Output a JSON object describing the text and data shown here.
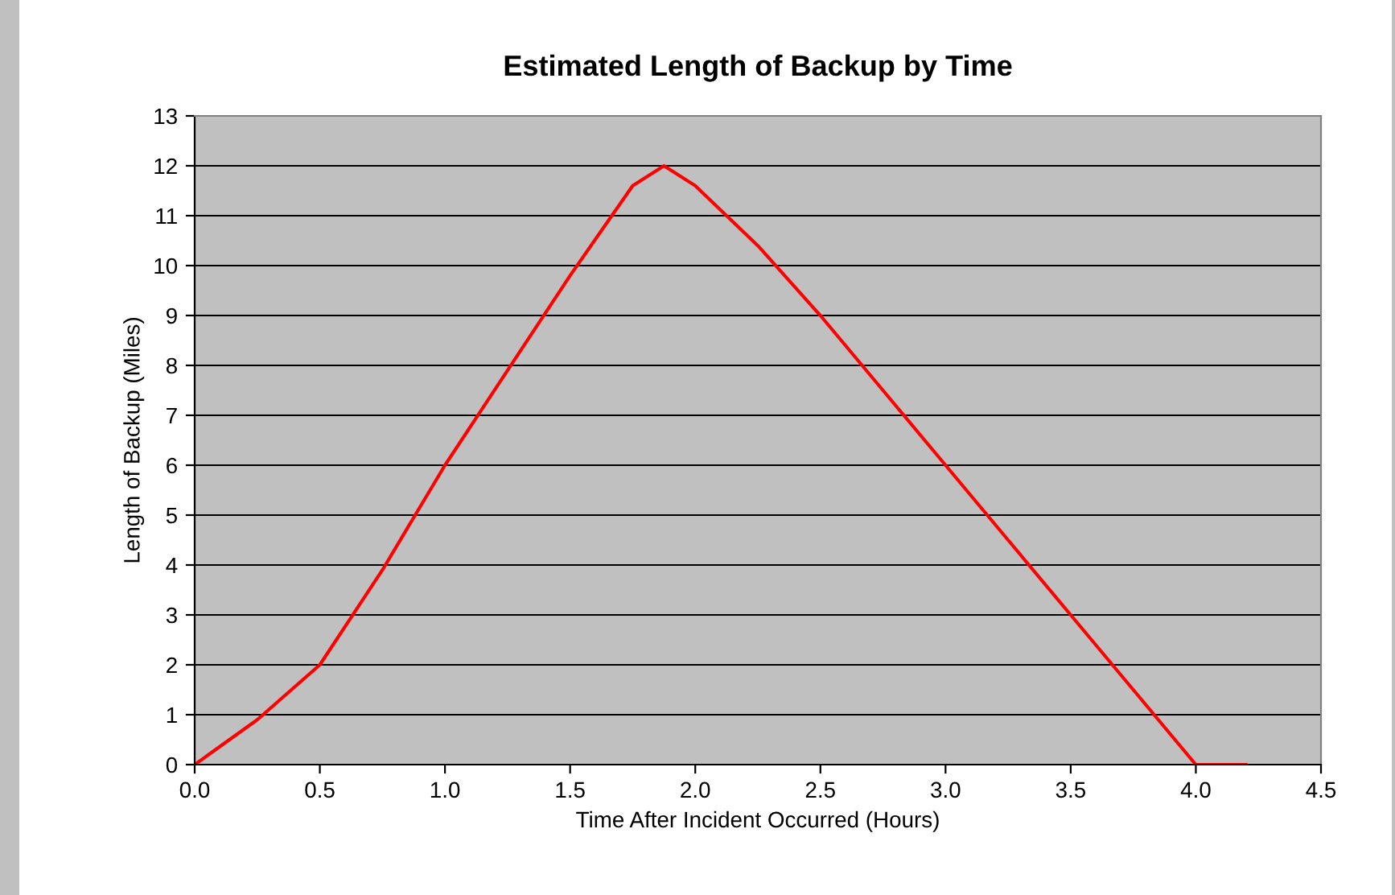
{
  "chart_data": {
    "type": "line",
    "title": "Estimated Length of Backup by Time",
    "xlabel": "Time After Incident Occurred (Hours)",
    "ylabel": "Length of Backup (Miles)",
    "x": [
      0,
      0.25,
      0.5,
      0.75,
      1.0,
      1.25,
      1.5,
      1.75,
      1.875,
      2.0,
      2.25,
      2.5,
      2.75,
      3.0,
      3.25,
      3.5,
      3.75,
      4.0,
      4.2
    ],
    "series": [
      {
        "color": "#ff0000",
        "values": [
          0,
          0.9,
          2,
          3.9,
          6,
          7.9,
          9.8,
          11.6,
          12,
          11.6,
          10.4,
          9,
          7.5,
          6,
          4.5,
          3,
          1.5,
          0,
          0
        ]
      }
    ],
    "xlim": [
      0,
      4.5
    ],
    "xticks": [
      {
        "value": 0,
        "label": "0.0"
      },
      {
        "value": 0.5,
        "label": "0.5"
      },
      {
        "value": 1,
        "label": "1.0"
      },
      {
        "value": 1.5,
        "label": "1.5"
      },
      {
        "value": 2,
        "label": "2.0"
      },
      {
        "value": 2.5,
        "label": "2.5"
      },
      {
        "value": 3,
        "label": "3.0"
      },
      {
        "value": 3.5,
        "label": "3.5"
      },
      {
        "value": 4,
        "label": "4.0"
      },
      {
        "value": 4.5,
        "label": "4.5"
      }
    ],
    "ylim": [
      0,
      13
    ],
    "yticks": [
      0,
      1,
      2,
      3,
      4,
      5,
      6,
      7,
      8,
      9,
      10,
      11,
      12,
      13
    ],
    "grid": "y",
    "marker": "none",
    "line_style": "solid",
    "legend": false
  }
}
